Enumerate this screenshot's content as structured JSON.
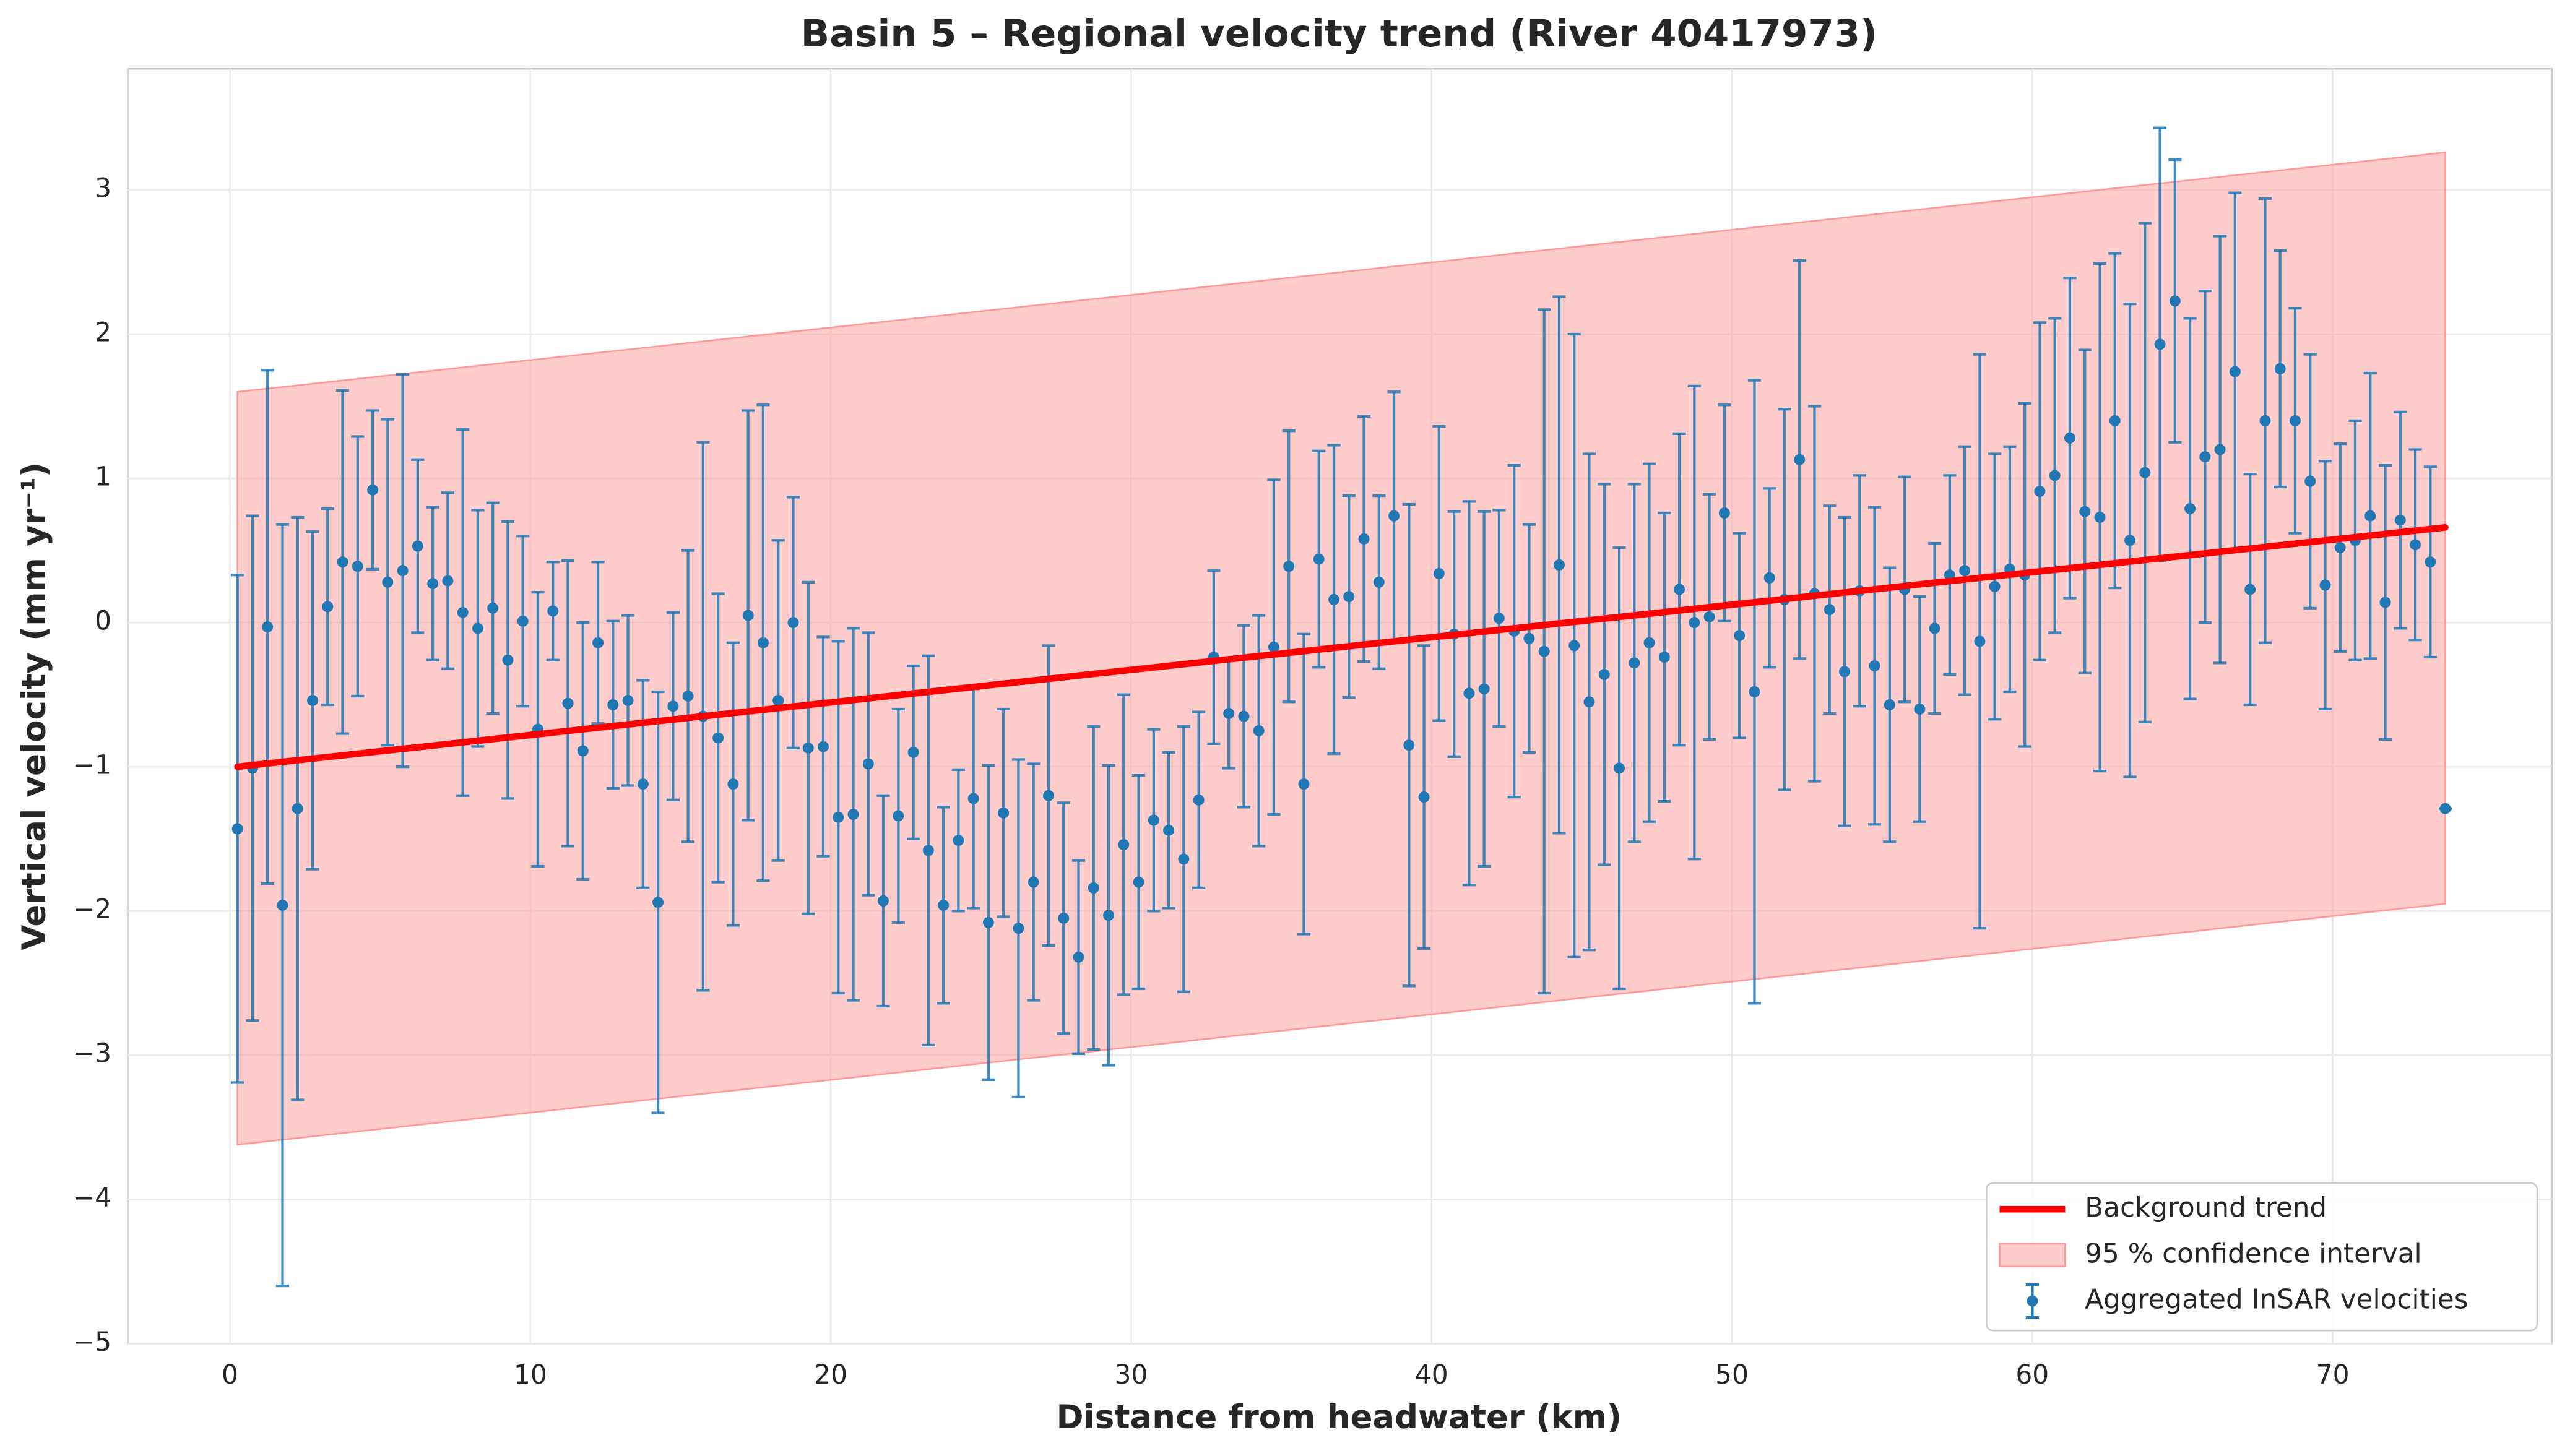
{
  "chart_data": {
    "type": "errorbar",
    "title": "Basin 5 – Regional velocity trend (River 40417973)",
    "xlabel": "Distance from headwater (km)",
    "ylabel": "Vertical velocity (mm yr⁻¹)",
    "xlim": [
      -3.4,
      77.3
    ],
    "ylim": [
      -5,
      3.84
    ],
    "xticks": [
      0,
      10,
      20,
      30,
      40,
      50,
      60,
      70
    ],
    "yticks": [
      {
        "value": -5,
        "label": "−5"
      },
      {
        "value": -4,
        "label": "−4"
      },
      {
        "value": -3,
        "label": "−3"
      },
      {
        "value": -2,
        "label": "−2"
      },
      {
        "value": -1,
        "label": "−1"
      },
      0,
      1,
      2,
      3
    ],
    "grid": true,
    "legend": "lower right",
    "trend": {
      "name": "Background trend",
      "color": "#ff0000",
      "x": [
        0.25,
        73.75
      ],
      "values": [
        -1.0,
        0.66
      ]
    },
    "confidence_interval": {
      "name": "95 % confidence interval",
      "color": "#ff9999",
      "x": [
        0.25,
        73.75
      ],
      "lower": [
        -3.62,
        -1.95
      ],
      "upper": [
        1.6,
        3.26
      ]
    },
    "series": [
      {
        "name": "Aggregated InSAR velocities",
        "color": "#1f77b4",
        "x": [
          0.25,
          0.75,
          1.25,
          1.75,
          2.25,
          2.75,
          3.25,
          3.75,
          4.25,
          4.75,
          5.25,
          5.75,
          6.25,
          6.75,
          7.25,
          7.75,
          8.25,
          8.75,
          9.25,
          9.75,
          10.25,
          10.75,
          11.25,
          11.75,
          12.25,
          12.75,
          13.25,
          13.75,
          14.25,
          14.75,
          15.25,
          15.75,
          16.25,
          16.75,
          17.25,
          17.75,
          18.25,
          18.75,
          19.25,
          19.75,
          20.25,
          20.75,
          21.25,
          21.75,
          22.25,
          22.75,
          23.25,
          23.75,
          24.25,
          24.75,
          25.25,
          25.75,
          26.25,
          26.75,
          27.25,
          27.75,
          28.25,
          28.75,
          29.25,
          29.75,
          30.25,
          30.75,
          31.25,
          31.75,
          32.25,
          32.75,
          33.25,
          33.75,
          34.25,
          34.75,
          35.25,
          35.75,
          36.25,
          36.75,
          37.25,
          37.75,
          38.25,
          38.75,
          39.25,
          39.75,
          40.25,
          40.75,
          41.25,
          41.75,
          42.25,
          42.75,
          43.25,
          43.75,
          44.25,
          44.75,
          45.25,
          45.75,
          46.25,
          46.75,
          47.25,
          47.75,
          48.25,
          48.75,
          49.25,
          49.75,
          50.25,
          50.75,
          51.25,
          51.75,
          52.25,
          52.75,
          53.25,
          53.75,
          54.25,
          54.75,
          55.25,
          55.75,
          56.25,
          56.75,
          57.25,
          57.75,
          58.25,
          58.75,
          59.25,
          59.75,
          60.25,
          60.75,
          61.25,
          61.75,
          62.25,
          62.75,
          63.25,
          63.75,
          64.25,
          64.75,
          65.25,
          65.75,
          66.25,
          66.75,
          67.25,
          67.75,
          68.25,
          68.75,
          69.25,
          69.75,
          70.25,
          70.75,
          71.25,
          71.75,
          72.25,
          72.75,
          73.25,
          73.75
        ],
        "values": [
          -1.43,
          -1.01,
          -0.03,
          -1.96,
          -1.29,
          -0.54,
          0.11,
          0.42,
          0.39,
          0.92,
          0.28,
          0.36,
          0.53,
          0.27,
          0.29,
          0.07,
          -0.04,
          0.1,
          -0.26,
          0.01,
          -0.74,
          0.08,
          -0.56,
          -0.89,
          -0.14,
          -0.57,
          -0.54,
          -1.12,
          -1.94,
          -0.58,
          -0.51,
          -0.65,
          -0.8,
          -1.12,
          0.05,
          -0.14,
          -0.54,
          0.0,
          -0.87,
          -0.86,
          -1.35,
          -1.33,
          -0.98,
          -1.93,
          -1.34,
          -0.9,
          -1.58,
          -1.96,
          -1.51,
          -1.22,
          -2.08,
          -1.32,
          -2.12,
          -1.8,
          -1.2,
          -2.05,
          -2.32,
          -1.84,
          -2.03,
          -1.54,
          -1.8,
          -1.37,
          -1.44,
          -1.64,
          -1.23,
          -0.24,
          -0.63,
          -0.65,
          -0.75,
          -0.17,
          0.39,
          -1.12,
          0.44,
          0.16,
          0.18,
          0.58,
          0.28,
          0.74,
          -0.85,
          -1.21,
          0.34,
          -0.08,
          -0.49,
          -0.46,
          0.03,
          -0.06,
          -0.11,
          -0.2,
          0.4,
          -0.16,
          -0.55,
          -0.36,
          -1.01,
          -0.28,
          -0.14,
          -0.24,
          0.23,
          0.0,
          0.04,
          0.76,
          -0.09,
          -0.48,
          0.31,
          0.16,
          1.13,
          0.2,
          0.09,
          -0.34,
          0.22,
          -0.3,
          -0.57,
          0.23,
          -0.6,
          -0.04,
          0.33,
          0.36,
          -0.13,
          0.25,
          0.37,
          0.33,
          0.91,
          1.02,
          1.28,
          0.77,
          0.73,
          1.4,
          0.57,
          1.04,
          1.93,
          2.23,
          0.79,
          1.15,
          1.2,
          1.74,
          0.23,
          1.4,
          1.76,
          1.4,
          0.98,
          0.26,
          0.52,
          0.57,
          0.74,
          0.14,
          0.71,
          0.54,
          0.42,
          -1.29
        ],
        "errors": [
          1.76,
          1.75,
          1.78,
          2.64,
          2.02,
          1.17,
          0.68,
          1.19,
          0.9,
          0.55,
          1.13,
          1.36,
          0.6,
          0.53,
          0.61,
          1.27,
          0.82,
          0.73,
          0.96,
          0.59,
          0.95,
          0.34,
          0.99,
          0.89,
          0.56,
          0.58,
          0.59,
          0.72,
          1.46,
          0.65,
          1.01,
          1.9,
          1.0,
          0.98,
          1.42,
          1.65,
          1.11,
          0.87,
          1.15,
          0.76,
          1.22,
          1.29,
          0.91,
          0.73,
          0.74,
          0.6,
          1.35,
          0.68,
          0.49,
          0.76,
          1.09,
          0.72,
          1.17,
          0.82,
          1.04,
          0.8,
          0.67,
          1.12,
          1.04,
          1.04,
          0.74,
          0.63,
          0.54,
          0.92,
          0.61,
          0.6,
          0.38,
          0.63,
          0.8,
          1.16,
          0.94,
          1.04,
          0.75,
          1.07,
          0.7,
          0.85,
          0.6,
          0.86,
          1.67,
          1.05,
          1.02,
          0.85,
          1.33,
          1.23,
          0.75,
          1.15,
          0.79,
          2.37,
          1.86,
          2.16,
          1.72,
          1.32,
          1.53,
          1.24,
          1.24,
          1.0,
          1.08,
          1.64,
          0.85,
          0.75,
          0.71,
          2.16,
          0.62,
          1.32,
          1.38,
          1.3,
          0.72,
          1.07,
          0.8,
          1.1,
          0.95,
          0.78,
          0.78,
          0.59,
          0.69,
          0.86,
          1.99,
          0.92,
          0.85,
          1.19,
          1.17,
          1.09,
          1.11,
          1.12,
          1.76,
          1.16,
          1.64,
          1.73,
          1.5,
          0.98,
          1.32,
          1.15,
          1.48,
          1.24,
          0.8,
          1.54,
          0.82,
          0.78,
          0.88,
          0.86,
          0.72,
          0.83,
          0.99,
          0.95,
          0.75,
          0.66,
          0.66,
          0
        ]
      }
    ]
  }
}
